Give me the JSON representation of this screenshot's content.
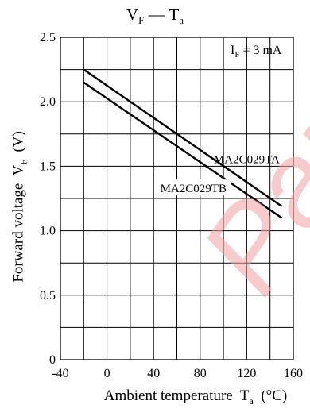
{
  "chart_data": {
    "type": "line",
    "title": "V_F — T_a",
    "title_main": "V",
    "title_sub": "F",
    "title_dash": " — ",
    "title_main2": "T",
    "title_sub2": "a",
    "xlabel": "Ambient temperature",
    "xlabel_symbol": "T",
    "xlabel_sub": "a",
    "xlabel_unit": "(°C)",
    "ylabel": "Forward voltage",
    "ylabel_symbol": "V",
    "ylabel_sub": "F",
    "ylabel_unit": "(V)",
    "condition": "I_F = 3 mA",
    "condition_main": "I",
    "condition_sub": "F",
    "condition_rest": " = 3 mA",
    "xlim": [
      -40,
      160
    ],
    "ylim": [
      0,
      2.5
    ],
    "x_ticks": [
      -40,
      0,
      40,
      80,
      120,
      160
    ],
    "x_tick_labels": [
      "-40",
      "0",
      "40",
      "80",
      "120",
      "160"
    ],
    "y_ticks": [
      0,
      0.5,
      1.0,
      1.5,
      2.0,
      2.5
    ],
    "y_tick_labels": [
      "0",
      "0.5",
      "1.0",
      "1.5",
      "2.0",
      "2.5"
    ],
    "grid": true,
    "series": [
      {
        "name": "MA2C029TA",
        "x": [
          -20,
          150
        ],
        "y": [
          2.25,
          1.19
        ]
      },
      {
        "name": "MA2C029TB",
        "x": [
          -20,
          150
        ],
        "y": [
          2.15,
          1.1
        ]
      }
    ],
    "line_color": "#000000",
    "watermark": "Panasonic",
    "watermark_color": "#e55a5a"
  }
}
